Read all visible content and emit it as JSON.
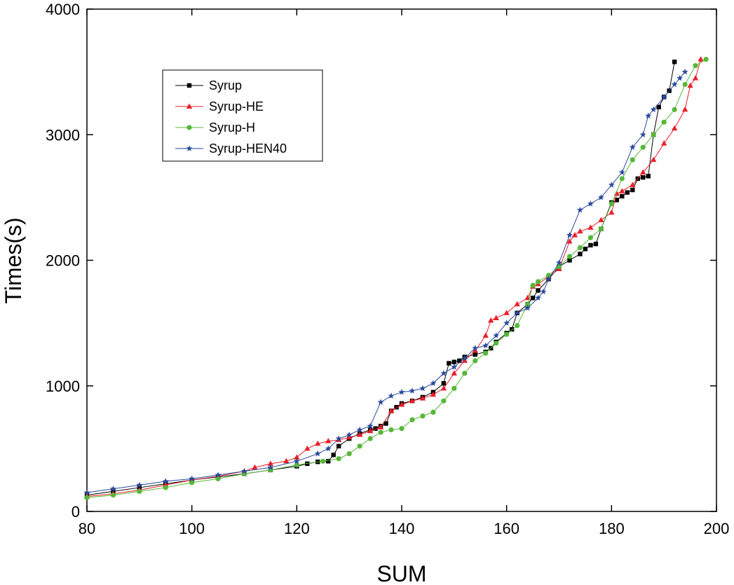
{
  "chart_data": {
    "type": "line",
    "title": "",
    "xlabel": "SUM",
    "ylabel": "Times(s)",
    "xlim": [
      80,
      200
    ],
    "ylim": [
      0,
      4000
    ],
    "xticks": [
      80,
      100,
      120,
      140,
      160,
      180,
      200
    ],
    "yticks": [
      0,
      1000,
      2000,
      3000,
      4000
    ],
    "xtick_labels": [
      "80",
      "100",
      "120",
      "140",
      "160",
      "180",
      "200"
    ],
    "ytick_labels": [
      "0",
      "1000",
      "2000",
      "3000",
      "4000"
    ],
    "grid": false,
    "legend": "top-left",
    "series": [
      {
        "name": "Syrup",
        "color": "#000000",
        "marker": "square",
        "x": [
          80,
          85,
          90,
          95,
          100,
          105,
          110,
          115,
          120,
          122,
          124,
          126,
          127,
          128,
          130,
          132,
          134,
          135,
          136,
          137,
          138,
          139,
          140,
          142,
          144,
          146,
          148,
          149,
          150,
          151,
          152,
          154,
          156,
          157,
          158,
          160,
          161,
          162,
          164,
          165,
          166,
          168,
          170,
          172,
          174,
          175,
          176,
          177,
          178,
          180,
          181,
          182,
          183,
          184,
          185,
          186,
          187,
          188,
          189,
          190,
          191,
          192
        ],
        "y": [
          130,
          160,
          190,
          220,
          250,
          275,
          300,
          330,
          360,
          380,
          395,
          400,
          450,
          520,
          580,
          620,
          650,
          660,
          680,
          700,
          800,
          830,
          860,
          880,
          910,
          950,
          1020,
          1180,
          1190,
          1200,
          1230,
          1250,
          1270,
          1300,
          1350,
          1420,
          1450,
          1580,
          1650,
          1700,
          1760,
          1850,
          1950,
          2000,
          2050,
          2090,
          2120,
          2130,
          2250,
          2460,
          2480,
          2510,
          2540,
          2560,
          2650,
          2660,
          2670,
          3000,
          3220,
          3300,
          3350,
          3580
        ]
      },
      {
        "name": "Syrup-HE",
        "color": "#e8202a",
        "marker": "triangle",
        "x": [
          80,
          85,
          90,
          95,
          100,
          105,
          110,
          112,
          115,
          118,
          120,
          122,
          124,
          126,
          128,
          130,
          132,
          134,
          136,
          138,
          140,
          142,
          144,
          146,
          148,
          150,
          152,
          154,
          156,
          157,
          158,
          160,
          162,
          164,
          165,
          166,
          168,
          170,
          172,
          173,
          174,
          176,
          178,
          180,
          181,
          182,
          184,
          186,
          188,
          190,
          192,
          194,
          195,
          196,
          197
        ],
        "y": [
          120,
          140,
          170,
          210,
          250,
          280,
          320,
          350,
          380,
          400,
          430,
          500,
          540,
          560,
          570,
          590,
          610,
          640,
          670,
          800,
          850,
          880,
          900,
          930,
          980,
          1100,
          1200,
          1280,
          1400,
          1520,
          1540,
          1580,
          1650,
          1700,
          1790,
          1810,
          1870,
          1930,
          2150,
          2200,
          2230,
          2260,
          2320,
          2380,
          2530,
          2550,
          2600,
          2700,
          2800,
          2930,
          3050,
          3200,
          3390,
          3450,
          3600
        ]
      },
      {
        "name": "Syrup-H",
        "color": "#55b838",
        "marker": "circle",
        "x": [
          80,
          85,
          90,
          95,
          100,
          105,
          110,
          115,
          120,
          125,
          128,
          130,
          132,
          134,
          136,
          138,
          140,
          142,
          144,
          146,
          148,
          150,
          152,
          154,
          156,
          158,
          160,
          162,
          164,
          165,
          166,
          168,
          170,
          172,
          174,
          176,
          178,
          180,
          182,
          184,
          186,
          188,
          190,
          192,
          194,
          196,
          198
        ],
        "y": [
          110,
          130,
          160,
          190,
          230,
          260,
          300,
          330,
          370,
          400,
          420,
          460,
          520,
          580,
          630,
          650,
          660,
          730,
          760,
          790,
          880,
          980,
          1100,
          1200,
          1260,
          1340,
          1410,
          1480,
          1650,
          1800,
          1830,
          1880,
          1950,
          2030,
          2100,
          2180,
          2250,
          2450,
          2650,
          2800,
          2900,
          3000,
          3100,
          3200,
          3400,
          3550,
          3600
        ]
      },
      {
        "name": "Syrup-HEN40",
        "color": "#2a4a9c",
        "marker": "star",
        "x": [
          80,
          85,
          90,
          95,
          100,
          105,
          110,
          115,
          120,
          124,
          126,
          128,
          130,
          132,
          134,
          136,
          138,
          140,
          142,
          144,
          146,
          148,
          150,
          152,
          154,
          156,
          158,
          160,
          162,
          164,
          166,
          167,
          168,
          170,
          172,
          174,
          176,
          178,
          180,
          182,
          184,
          186,
          187,
          188,
          190,
          192,
          193,
          194
        ],
        "y": [
          150,
          180,
          210,
          240,
          260,
          290,
          320,
          350,
          400,
          460,
          500,
          580,
          610,
          650,
          680,
          870,
          920,
          950,
          960,
          980,
          1020,
          1100,
          1150,
          1220,
          1300,
          1320,
          1400,
          1500,
          1580,
          1620,
          1700,
          1750,
          1850,
          1980,
          2200,
          2400,
          2450,
          2500,
          2600,
          2700,
          2900,
          3000,
          3150,
          3200,
          3300,
          3400,
          3450,
          3500
        ]
      }
    ]
  }
}
